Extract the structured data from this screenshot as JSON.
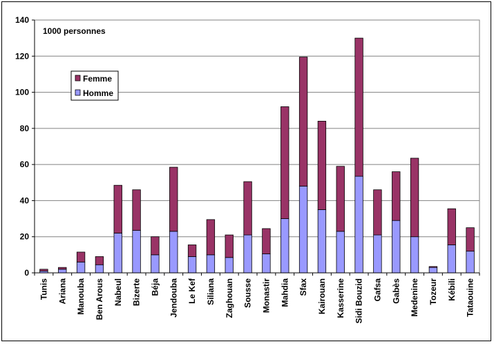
{
  "chart_data": {
    "type": "bar",
    "stacked": true,
    "unit_label": "1000 personnes",
    "categories": [
      "Tunis",
      "Ariana",
      "Manouba",
      "Ben Arous",
      "Nabeul",
      "Bizerte",
      "Béja",
      "Jendouba",
      "Le Kef",
      "Siliana",
      "Zaghouan",
      "Sousse",
      "Monastir",
      "Mahdia",
      "Sfax",
      "Kairouan",
      "Kasserine",
      "Sidi Bouzid",
      "Gafsa",
      "Gabès",
      "Medenine",
      "Tozeur",
      "Kébili",
      "Tataouine"
    ],
    "series": [
      {
        "name": "Homme",
        "color": "#9999ff",
        "values": [
          1,
          2,
          6,
          4.5,
          22,
          23.5,
          10,
          23,
          9,
          10,
          8.5,
          21,
          10.5,
          30,
          48,
          35,
          23,
          53.5,
          21,
          29,
          20,
          3,
          15.5,
          12
        ]
      },
      {
        "name": "Femme",
        "color": "#993366",
        "values": [
          1,
          1,
          5.5,
          4.5,
          26.5,
          22.5,
          10,
          35.5,
          6.5,
          19.5,
          12.5,
          29.5,
          14,
          62,
          71.5,
          49,
          36,
          76.5,
          25,
          27,
          43.5,
          0.5,
          20,
          13
        ]
      }
    ],
    "ylim": [
      0,
      140
    ],
    "yticks": [
      0,
      20,
      40,
      60,
      80,
      100,
      120,
      140
    ],
    "grid": true,
    "legend": {
      "position": "upper-left-inside",
      "order": [
        "Femme",
        "Homme"
      ]
    },
    "plot_background": "#ffffff",
    "gridline_color": "#808080"
  }
}
